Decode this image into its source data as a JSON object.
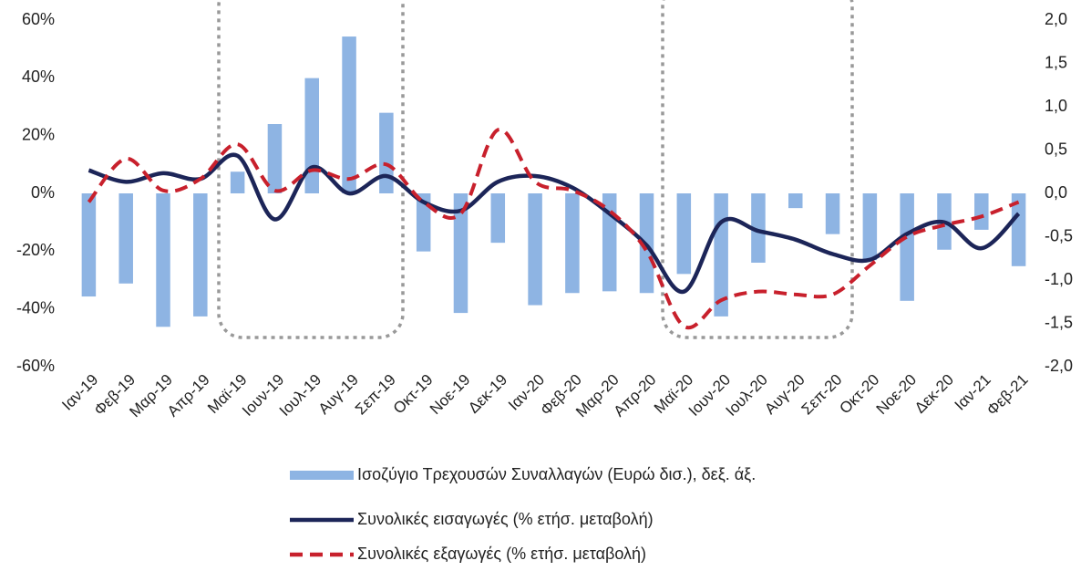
{
  "chart_data": {
    "type": "bar",
    "categories": [
      "Ιαν-19",
      "Φεβ-19",
      "Μαρ-19",
      "Απρ-19",
      "Μαϊ-19",
      "Ιουν-19",
      "Ιουλ-19",
      "Αυγ-19",
      "Σεπ-19",
      "Οκτ-19",
      "Νοε-19",
      "Δεκ-19",
      "Ιαν-20",
      "Φεβ-20",
      "Μαρ-20",
      "Απρ-20",
      "Μαϊ-20",
      "Ιουν-20",
      "Ιουλ-20",
      "Αυγ-20",
      "Σεπ-20",
      "Οκτ-20",
      "Νοε-20",
      "Δεκ-20",
      "Ιαν-21",
      "Φεβ-21"
    ],
    "series": [
      {
        "name": "Ισοζύγιο Τρεχουσών Συναλλαγών (Ευρώ δισ.), δεξ. άξ.",
        "type": "bar",
        "axis": "y2",
        "color": "#8eb4e3",
        "values": [
          -1.19,
          -1.04,
          -1.54,
          -1.42,
          0.25,
          0.8,
          1.33,
          1.81,
          0.93,
          -0.67,
          -1.38,
          -0.57,
          -1.29,
          -1.15,
          -1.13,
          -1.15,
          -0.93,
          -1.42,
          -0.8,
          -0.17,
          -0.47,
          -0.77,
          -1.24,
          -0.65,
          -0.42,
          -0.84
        ]
      },
      {
        "name": "Συνολικές εισαγωγές (% ετήσ. μεταβολή)",
        "type": "line",
        "color": "#1c2558",
        "linestyle": "solid",
        "values": [
          8,
          4,
          7,
          5,
          13,
          -9,
          9,
          0,
          6,
          -3,
          -6,
          4,
          6,
          2,
          -7,
          -18,
          -34,
          -10,
          -13,
          -16,
          -21,
          -23,
          -14,
          -10,
          -19,
          -7
        ]
      },
      {
        "name": "Συνολικές εξαγωγές (% ετήσ. μεταβολή)",
        "type": "line",
        "color": "#c8202c",
        "linestyle": "dashed",
        "values": [
          -3,
          12,
          1,
          5,
          17,
          1,
          8,
          5,
          10,
          -3,
          -7,
          22,
          4,
          1,
          -6,
          -20,
          -46,
          -37,
          -34,
          -35,
          -35,
          -25,
          -15,
          -11,
          -8,
          -3
        ]
      }
    ],
    "ylim": [
      -60,
      60
    ],
    "yticks": [
      {
        "value": -60,
        "label": "-60%"
      },
      {
        "value": -40,
        "label": "-40%"
      },
      {
        "value": -20,
        "label": "-20%"
      },
      {
        "value": 0,
        "label": "0%"
      },
      {
        "value": 20,
        "label": "20%"
      },
      {
        "value": 40,
        "label": "40%"
      },
      {
        "value": 60,
        "label": "60%"
      }
    ],
    "y2lim": [
      -2,
      2
    ],
    "y2ticks": [
      {
        "value": -2,
        "label": "-2,0"
      },
      {
        "value": -1.5,
        "label": "-1,5"
      },
      {
        "value": -1,
        "label": "-1,0"
      },
      {
        "value": -0.5,
        "label": "-0,5"
      },
      {
        "value": 0,
        "label": "0,0"
      },
      {
        "value": 0.5,
        "label": "0,5"
      },
      {
        "value": 1,
        "label": "1,0"
      },
      {
        "value": 1.5,
        "label": "1,5"
      },
      {
        "value": 2,
        "label": "2,0"
      }
    ],
    "grid": false
  }
}
